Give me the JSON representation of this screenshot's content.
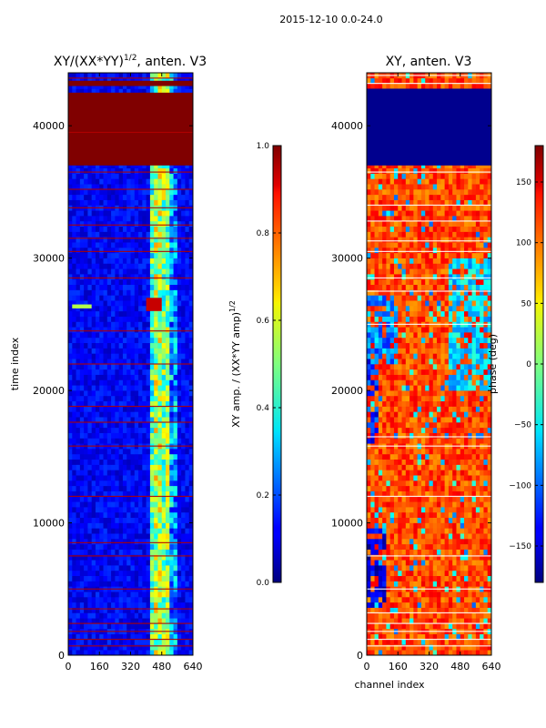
{
  "figure_title": "2015-12-10 0.0-24.0",
  "shared_xlabel": "channel index",
  "chart_data": [
    {
      "type": "heatmap",
      "title": "XY/(XX*YY)",
      "title_sup": "1/2",
      "title_suffix": ", anten. V3",
      "xlabel": "",
      "ylabel": "time index",
      "xlim": [
        0,
        640
      ],
      "ylim": [
        0,
        44000
      ],
      "xticks": [
        0,
        160,
        320,
        480,
        640
      ],
      "yticks": [
        0,
        10000,
        20000,
        30000,
        40000
      ],
      "colormap": "jet",
      "colorbar": {
        "label": "XY amp. / (XX*YY amp)",
        "label_sup": "1/2",
        "range": [
          0.0,
          1.0
        ],
        "ticks": [
          "0.0",
          "0.2",
          "0.4",
          "0.6",
          "0.8",
          "1.0"
        ],
        "tick_values": [
          0.0,
          0.2,
          0.4,
          0.6,
          0.8,
          1.0
        ]
      },
      "background_value": 0.12,
      "channel_bands": [
        {
          "x0": 410,
          "x1": 440,
          "value": 0.45
        },
        {
          "x0": 445,
          "x1": 475,
          "value": 0.55
        },
        {
          "x0": 485,
          "x1": 510,
          "value": 0.5
        },
        {
          "x0": 515,
          "x1": 560,
          "value": 0.28
        }
      ],
      "time_bands": [
        {
          "t0": 37000,
          "t1": 42500,
          "value": 1.0
        },
        {
          "t0": 43000,
          "t1": 43400,
          "value": 1.0
        },
        {
          "t0": 26000,
          "t1": 27000,
          "channels": [
            400,
            480
          ],
          "value": 0.93
        },
        {
          "t0": 26200,
          "t1": 26500,
          "channels": [
            20,
            120
          ],
          "value": 0.55
        }
      ],
      "flag_lines_t": [
        700,
        1200,
        1800,
        2400,
        3500,
        5000,
        7500,
        8500,
        12000,
        15800,
        17600,
        18800,
        22000,
        24500,
        28500,
        30500,
        31500,
        32500,
        33800,
        35200,
        36500,
        39500,
        43600
      ]
    },
    {
      "type": "heatmap",
      "title": "XY, anten. V3",
      "xlabel": "channel index",
      "ylabel": "",
      "xlim": [
        0,
        640
      ],
      "ylim": [
        0,
        44000
      ],
      "xticks": [
        0,
        160,
        320,
        480,
        640
      ],
      "yticks": [
        0,
        10000,
        20000,
        30000,
        40000
      ],
      "colormap": "jet",
      "colorbar": {
        "label": "phase (deg)",
        "range": [
          -180,
          180
        ],
        "ticks": [
          "−150",
          "−100",
          "−50",
          "0",
          "50",
          "100",
          "150"
        ],
        "tick_values": [
          -150,
          -100,
          -50,
          0,
          50,
          100,
          150
        ]
      },
      "background_value": 110,
      "phase_regions": [
        {
          "t0": 37000,
          "t1": 42800,
          "value": -175
        },
        {
          "t0": 16000,
          "t1": 24000,
          "channels": [
            0,
            60
          ],
          "value": -120
        },
        {
          "t0": 22000,
          "t1": 27000,
          "channels": [
            0,
            150
          ],
          "value": -90
        },
        {
          "t0": 3500,
          "t1": 9500,
          "channels": [
            0,
            100
          ],
          "value": -150
        },
        {
          "t0": 20000,
          "t1": 30000,
          "channels": [
            420,
            640
          ],
          "value": -60
        }
      ],
      "flag_lines_t": [
        700,
        1200,
        1800,
        2400,
        3200,
        5000,
        7500,
        12000,
        15800,
        16500,
        25000,
        27500,
        28500,
        30500,
        31300,
        32800,
        34000,
        36500,
        43200,
        43800
      ]
    }
  ]
}
